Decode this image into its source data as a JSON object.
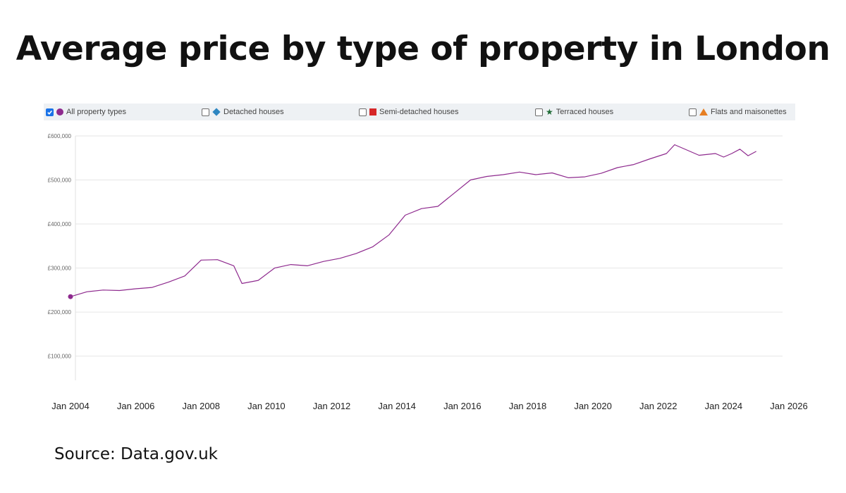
{
  "title": "Average price by type of  property in London",
  "source": "Source: Data.gov.uk",
  "legend": [
    {
      "label": "All property types",
      "marker": "circle",
      "color": "#8e2a8e",
      "checked": true
    },
    {
      "label": "Detached houses",
      "marker": "diamond",
      "color": "#2e86c1",
      "checked": false
    },
    {
      "label": "Semi-detached houses",
      "marker": "square",
      "color": "#d62728",
      "checked": false
    },
    {
      "label": "Terraced houses",
      "marker": "star",
      "color": "#1e6b35",
      "checked": false
    },
    {
      "label": "Flats and maisonettes",
      "marker": "triangle",
      "color": "#e67e22",
      "checked": false
    }
  ],
  "chart_data": {
    "type": "line",
    "title": "Average price by type of  property in London",
    "xlabel": "",
    "ylabel": "",
    "x_ticks": [
      "Jan 2004",
      "Jan 2006",
      "Jan 2008",
      "Jan 2010",
      "Jan 2012",
      "Jan 2014",
      "Jan 2016",
      "Jan 2018",
      "Jan 2020",
      "Jan 2022",
      "Jan 2024",
      "Jan 2026"
    ],
    "y_ticks": [
      "£100,000",
      "£200,000",
      "£300,000",
      "£400,000",
      "£500,000",
      "£600,000"
    ],
    "xlim": [
      "2004-01",
      "2026-01"
    ],
    "ylim": [
      45000,
      600000
    ],
    "grid": true,
    "legend_position": "top",
    "series": [
      {
        "name": "All property types",
        "color": "#8e2a8e",
        "points": [
          [
            "2004-01",
            235000
          ],
          [
            "2004-07",
            246000
          ],
          [
            "2005-01",
            250000
          ],
          [
            "2005-07",
            249000
          ],
          [
            "2006-01",
            253000
          ],
          [
            "2006-07",
            256000
          ],
          [
            "2007-01",
            268000
          ],
          [
            "2007-07",
            282000
          ],
          [
            "2008-01",
            318000
          ],
          [
            "2008-07",
            319000
          ],
          [
            "2009-01",
            305000
          ],
          [
            "2009-04",
            265000
          ],
          [
            "2009-10",
            272000
          ],
          [
            "2010-04",
            300000
          ],
          [
            "2010-10",
            308000
          ],
          [
            "2011-04",
            305000
          ],
          [
            "2011-10",
            315000
          ],
          [
            "2012-04",
            322000
          ],
          [
            "2012-10",
            333000
          ],
          [
            "2013-04",
            348000
          ],
          [
            "2013-10",
            375000
          ],
          [
            "2014-04",
            420000
          ],
          [
            "2014-10",
            435000
          ],
          [
            "2015-04",
            440000
          ],
          [
            "2015-10",
            470000
          ],
          [
            "2016-04",
            500000
          ],
          [
            "2016-10",
            508000
          ],
          [
            "2017-04",
            512000
          ],
          [
            "2017-10",
            518000
          ],
          [
            "2018-04",
            512000
          ],
          [
            "2018-10",
            516000
          ],
          [
            "2019-04",
            505000
          ],
          [
            "2019-10",
            507000
          ],
          [
            "2020-04",
            515000
          ],
          [
            "2020-10",
            528000
          ],
          [
            "2021-04",
            535000
          ],
          [
            "2021-10",
            548000
          ],
          [
            "2022-04",
            560000
          ],
          [
            "2022-07",
            580000
          ],
          [
            "2022-10",
            572000
          ],
          [
            "2023-04",
            556000
          ],
          [
            "2023-10",
            560000
          ],
          [
            "2024-01",
            552000
          ],
          [
            "2024-04",
            560000
          ],
          [
            "2024-07",
            570000
          ],
          [
            "2024-10",
            555000
          ],
          [
            "2025-01",
            565000
          ]
        ]
      }
    ]
  }
}
